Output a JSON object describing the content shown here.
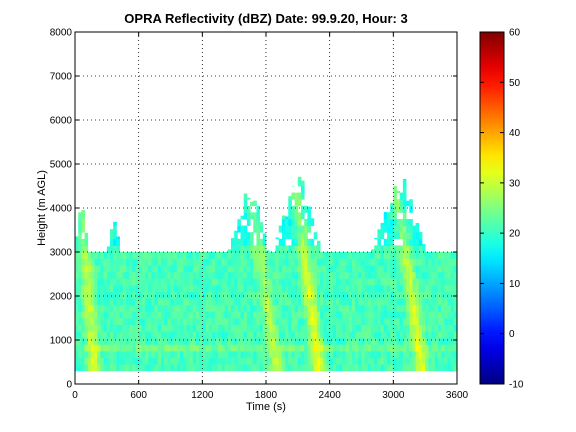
{
  "chart_data": {
    "type": "heatmap",
    "title": "OPRA Reflectivity (dBZ)  Date: 99.9.20, Hour: 3",
    "xlabel": "Time (s)",
    "ylabel": "Height (m AGL)",
    "xlim": [
      0,
      3600
    ],
    "ylim": [
      0,
      8000
    ],
    "x_ticks": [
      "0",
      "600",
      "1200",
      "1800",
      "2400",
      "3000",
      "3600"
    ],
    "y_ticks": [
      "0",
      "1000",
      "2000",
      "3000",
      "4000",
      "5000",
      "6000",
      "7000",
      "8000"
    ],
    "grid": "dotted",
    "colormap": "jet",
    "clim": [
      -10,
      60
    ],
    "colorbar_ticks": [
      "-10",
      "0",
      "10",
      "20",
      "30",
      "40",
      "50",
      "60"
    ],
    "background_dbz": 21,
    "layer_top_m": 3000,
    "layer_bottom_m": 300,
    "bright_band_m": [
      650,
      800
    ],
    "fall_streaks": [
      {
        "name": "streak-1",
        "top_time_s": 60,
        "top_m": 4300,
        "base_time_s": 180,
        "peak_dbz": 32
      },
      {
        "name": "streak-2",
        "top_time_s": 1650,
        "top_m": 4400,
        "base_time_s": 1900,
        "peak_dbz": 30
      },
      {
        "name": "streak-3",
        "top_time_s": 2050,
        "top_m": 4900,
        "base_time_s": 2300,
        "peak_dbz": 34
      },
      {
        "name": "streak-4",
        "top_time_s": 2980,
        "top_m": 5100,
        "base_time_s": 3270,
        "peak_dbz": 33
      }
    ],
    "upper_echo_tops": [
      {
        "time_s": [
          0,
          120
        ],
        "top_m": 4300
      },
      {
        "time_s": [
          310,
          420
        ],
        "top_m": 4000
      },
      {
        "time_s": [
          1450,
          1820
        ],
        "top_m": 4600
      },
      {
        "time_s": [
          1880,
          2320
        ],
        "top_m": 5000
      },
      {
        "time_s": [
          2800,
          3300
        ],
        "top_m": 5100
      }
    ]
  }
}
